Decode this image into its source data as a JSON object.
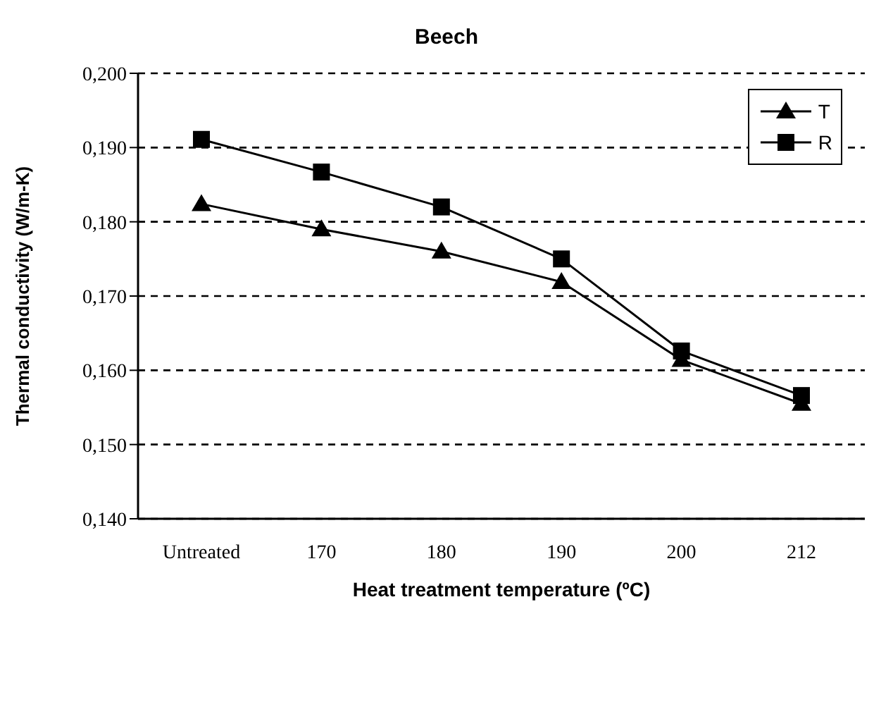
{
  "chart_data": {
    "type": "line",
    "title": "Beech",
    "xlabel": "Heat treatment temperature (ºC)",
    "ylabel": "Thermal conductivity (W/m-K)",
    "categories": [
      "Untreated",
      "170",
      "180",
      "190",
      "200",
      "212"
    ],
    "series": [
      {
        "name": "T",
        "color": "#000000",
        "marker": "triangle",
        "values": [
          0.1824,
          0.179,
          0.176,
          0.1719,
          0.1614,
          0.1555
        ]
      },
      {
        "name": "R",
        "color": "#000000",
        "marker": "square",
        "values": [
          0.1911,
          0.1867,
          0.182,
          0.175,
          0.1626,
          0.1566
        ]
      }
    ],
    "ylim": [
      0.14,
      0.2
    ],
    "yticks": [
      {
        "value": 0.14,
        "label": "0,140"
      },
      {
        "value": 0.15,
        "label": "0,150"
      },
      {
        "value": 0.16,
        "label": "0,160"
      },
      {
        "value": 0.17,
        "label": "0,170"
      },
      {
        "value": 0.18,
        "label": "0,180"
      },
      {
        "value": 0.19,
        "label": "0,190"
      },
      {
        "value": 0.2,
        "label": "0,200"
      }
    ],
    "grid": "y",
    "legend": "top right",
    "line_style": "solid"
  }
}
